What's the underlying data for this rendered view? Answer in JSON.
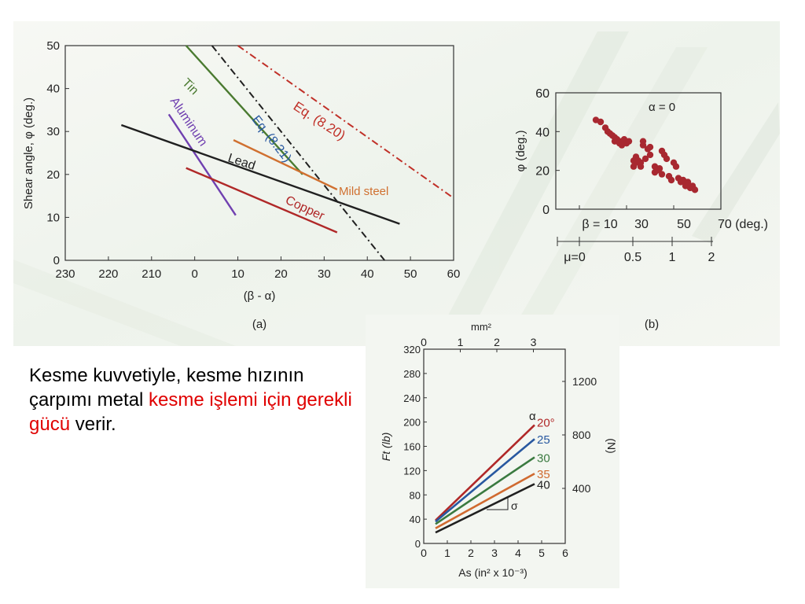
{
  "slide_text": {
    "part1": "Kesme kuvvetiyle, kesme hızının çarpımı metal ",
    "highlight": "kesme işlemi için gerekli gücü",
    "part2": " verir."
  },
  "colors": {
    "highlight": "#e00000",
    "background": "#f6f8f4"
  },
  "chart_data": [
    {
      "type": "line",
      "panel_label": "(a)",
      "xlabel": "(β - α)",
      "ylabel": "Shear angle, φ (deg.)",
      "x_tick_labels": [
        "230",
        "220",
        "210",
        "0",
        "10",
        "20",
        "30",
        "40",
        "50",
        "60"
      ],
      "y_tick_labels": [
        "0",
        "10",
        "20",
        "30",
        "40",
        "50"
      ],
      "ylim": [
        0,
        50
      ],
      "series": [
        {
          "name": "Eq. (8.20)",
          "color": "#c03028",
          "style": "dash-dot",
          "points": [
            [
              10,
              50
            ],
            [
              60,
              14.5
            ]
          ]
        },
        {
          "name": "Eq. (8.21)",
          "color": "#202020",
          "style": "dash-dot",
          "points": [
            [
              4,
              50
            ],
            [
              44,
              0
            ]
          ]
        },
        {
          "name": "Tin",
          "color": "#4a7a30",
          "points": [
            [
              -2,
              50
            ],
            [
              25,
              20
            ]
          ]
        },
        {
          "name": "Aluminum",
          "color": "#7040b0",
          "points": [
            [
              -6,
              34
            ],
            [
              9.5,
              10.5
            ]
          ]
        },
        {
          "name": "Lead",
          "color": "#202020",
          "points": [
            [
              -17,
              31.5
            ],
            [
              47.5,
              8.5
            ]
          ]
        },
        {
          "name": "Mild steel",
          "color": "#d07030",
          "points": [
            [
              9,
              28
            ],
            [
              33,
              16.5
            ]
          ]
        },
        {
          "name": "Copper",
          "color": "#b02828",
          "points": [
            [
              -2,
              21.5
            ],
            [
              33,
              6.5
            ]
          ]
        }
      ]
    },
    {
      "type": "scatter",
      "panel_label": "(b)",
      "annotation": "α = 0",
      "ylabel": "φ (deg.)",
      "x_tick_labels": [
        "β = 10",
        "30",
        "50",
        "70 (deg.)"
      ],
      "mu_tick_labels": [
        "μ=0",
        "0.5",
        "1",
        "2"
      ],
      "y_tick_labels": [
        "0",
        "20",
        "40",
        "60"
      ],
      "xlim": [
        10,
        70
      ],
      "ylim": [
        0,
        60
      ],
      "marker_color": "#a82830",
      "points": [
        [
          17,
          46
        ],
        [
          19,
          45
        ],
        [
          21,
          42
        ],
        [
          22,
          40
        ],
        [
          23,
          39
        ],
        [
          24,
          38
        ],
        [
          25,
          37
        ],
        [
          25,
          35
        ],
        [
          26,
          36
        ],
        [
          27,
          34
        ],
        [
          28,
          35
        ],
        [
          28,
          33
        ],
        [
          29,
          36
        ],
        [
          30,
          34
        ],
        [
          31,
          35
        ],
        [
          33,
          25
        ],
        [
          33,
          22
        ],
        [
          34,
          24
        ],
        [
          34,
          27
        ],
        [
          35,
          25
        ],
        [
          36,
          22
        ],
        [
          36,
          24
        ],
        [
          37,
          35
        ],
        [
          37,
          33
        ],
        [
          38,
          26
        ],
        [
          39,
          31
        ],
        [
          40,
          32
        ],
        [
          40,
          28
        ],
        [
          42,
          22
        ],
        [
          42,
          19
        ],
        [
          43,
          20
        ],
        [
          44,
          21
        ],
        [
          45,
          18
        ],
        [
          45,
          30
        ],
        [
          46,
          28
        ],
        [
          47,
          26
        ],
        [
          48,
          17
        ],
        [
          49,
          15
        ],
        [
          50,
          24
        ],
        [
          51,
          22
        ],
        [
          52,
          16
        ],
        [
          53,
          14
        ],
        [
          54,
          15
        ],
        [
          55,
          12
        ],
        [
          56,
          14
        ],
        [
          57,
          11
        ],
        [
          58,
          12
        ],
        [
          59,
          10
        ]
      ]
    },
    {
      "type": "line",
      "xlabel": "As (in² x 10⁻³)",
      "ylabel": "Ft (lb)",
      "top_axis_label": "mm²",
      "right_axis_label": "(N)",
      "x_tick_labels": [
        "0",
        "1",
        "2",
        "3",
        "4",
        "5",
        "6"
      ],
      "y_tick_labels": [
        "0",
        "40",
        "80",
        "120",
        "160",
        "200",
        "240",
        "280",
        "320"
      ],
      "top_tick_labels": [
        "0",
        "1",
        "2",
        "3"
      ],
      "right_tick_labels": [
        "400",
        "800",
        "1200"
      ],
      "xlim": [
        0,
        6
      ],
      "ylim": [
        0,
        320
      ],
      "legend_title": "α",
      "slope_label": "σ",
      "series": [
        {
          "name": "20°",
          "color": "#b02828",
          "points": [
            [
              0.5,
              38
            ],
            [
              4.7,
              195
            ]
          ]
        },
        {
          "name": "25",
          "color": "#2858a0",
          "points": [
            [
              0.5,
              36
            ],
            [
              4.7,
              172
            ]
          ]
        },
        {
          "name": "30",
          "color": "#3a7a40",
          "points": [
            [
              0.5,
              32
            ],
            [
              4.7,
              142
            ]
          ]
        },
        {
          "name": "35",
          "color": "#d06a30",
          "points": [
            [
              0.5,
              25
            ],
            [
              4.7,
              115
            ]
          ]
        },
        {
          "name": "40",
          "color": "#202020",
          "points": [
            [
              0.5,
              18
            ],
            [
              4.7,
              98
            ]
          ]
        }
      ]
    }
  ]
}
